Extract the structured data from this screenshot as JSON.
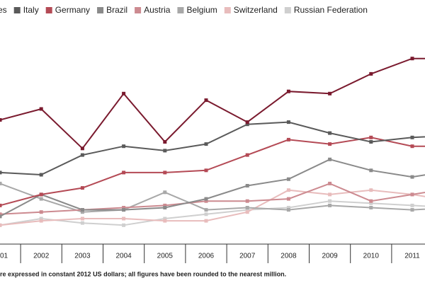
{
  "chart_data": {
    "type": "line",
    "categories": [
      "01",
      "2002",
      "2003",
      "2004",
      "2005",
      "2006",
      "2007",
      "2008",
      "2009",
      "2010",
      "2011",
      null
    ],
    "ylim": [
      0,
      100
    ],
    "note": "re expressed in constant 2012 US dollars; all figures have been rounded to the nearest million.",
    "series": [
      {
        "name": "es",
        "color": "#7a1a2e",
        "values": [
          55,
          60,
          42,
          67,
          45,
          64,
          54,
          68,
          67,
          76,
          83,
          83
        ]
      },
      {
        "name": "Italy",
        "color": "#5a5a5a",
        "values": [
          31,
          30,
          39,
          43,
          41,
          44,
          53,
          54,
          49,
          45,
          47,
          48
        ]
      },
      {
        "name": "Germany",
        "color": "#b44a55",
        "values": [
          16,
          21,
          24,
          31,
          31,
          32,
          39,
          46,
          44,
          47,
          43,
          43
        ]
      },
      {
        "name": "Brazil",
        "color": "#8a8a8a",
        "values": [
          11,
          21,
          14,
          14,
          15,
          19,
          25,
          28,
          37,
          32,
          29,
          32
        ]
      },
      {
        "name": "Austria",
        "color": "#cc8a90",
        "values": [
          12,
          13,
          14,
          15,
          16,
          18,
          18,
          19,
          26,
          18,
          21,
          24
        ]
      },
      {
        "name": "Belgium",
        "color": "#a8a8a8",
        "values": [
          26,
          19,
          13,
          14,
          22,
          14,
          15,
          14,
          16,
          15,
          14,
          15
        ]
      },
      {
        "name": "Switzerland",
        "color": "#e8bcbc",
        "values": [
          7,
          9,
          10,
          10,
          9,
          9,
          13,
          23,
          21,
          23,
          21,
          18
        ]
      },
      {
        "name": "Russian Federation",
        "color": "#cfcfcf",
        "values": [
          7,
          10,
          8,
          7,
          10,
          12,
          14,
          15,
          18,
          17,
          16,
          15
        ]
      }
    ]
  }
}
